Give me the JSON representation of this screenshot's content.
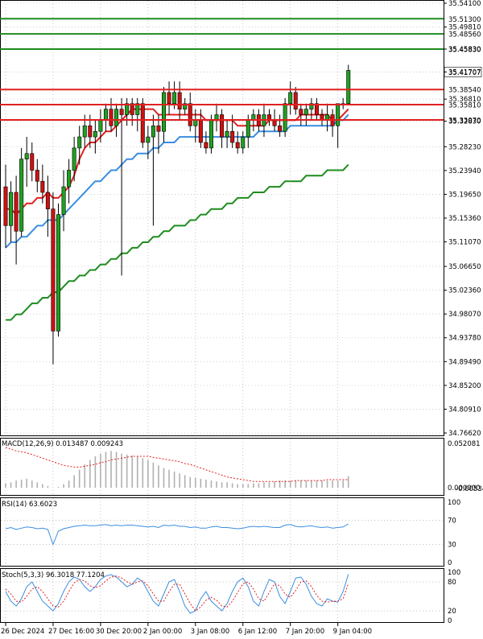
{
  "chart_data": [
    {
      "type": "candlestick",
      "panel": "price",
      "ylim": [
        34.7662,
        35.541
      ],
      "y_ticks": [
        "35.54100",
        "35.49810",
        "35.45830",
        "35.41707",
        "35.36810",
        "35.32830",
        "35.28230",
        "35.23940",
        "35.19650",
        "35.15360",
        "35.11070",
        "35.06650",
        "35.02360",
        "34.98070",
        "34.93780",
        "34.89490",
        "34.85200",
        "34.80910",
        "34.76620"
      ],
      "price_tag": "35.41707",
      "horizontal_levels": [
        {
          "value": 35.513,
          "label": "35.51300",
          "color": "#1e8c1e"
        },
        {
          "value": 35.4856,
          "label": "35.48560",
          "color": "#1e8c1e"
        },
        {
          "value": 35.4583,
          "label": "35.45830",
          "color": "#1e8c1e"
        },
        {
          "value": 35.3854,
          "label": "35.38540",
          "color": "#e02020"
        },
        {
          "value": 35.3581,
          "label": "35.35810",
          "color": "#e02020"
        },
        {
          "value": 35.3307,
          "label": "35.33070",
          "color": "#e02020"
        }
      ],
      "colors": {
        "bull": "#20a020",
        "bear": "#d01010",
        "ma_fast": "#e02020",
        "ma_mid": "#3a8ee0",
        "ma_slow": "#1e8c1e"
      },
      "candles": [
        [
          35.21,
          35.25,
          35.1,
          35.14
        ],
        [
          35.14,
          35.22,
          35.11,
          35.2
        ],
        [
          35.2,
          35.23,
          35.07,
          35.13
        ],
        [
          35.13,
          35.28,
          35.12,
          35.26
        ],
        [
          35.26,
          35.3,
          35.21,
          35.27
        ],
        [
          35.27,
          35.29,
          35.22,
          35.24
        ],
        [
          35.24,
          35.26,
          35.2,
          35.22
        ],
        [
          35.22,
          35.25,
          35.18,
          35.2
        ],
        [
          35.2,
          35.23,
          35.12,
          35.17
        ],
        [
          35.17,
          35.2,
          34.89,
          34.95
        ],
        [
          34.95,
          35.18,
          34.94,
          35.16
        ],
        [
          35.16,
          35.24,
          35.13,
          35.21
        ],
        [
          35.21,
          35.26,
          35.18,
          35.24
        ],
        [
          35.24,
          35.3,
          35.22,
          35.28
        ],
        [
          35.28,
          35.32,
          35.25,
          35.3
        ],
        [
          35.3,
          35.34,
          35.28,
          35.32
        ],
        [
          35.32,
          35.34,
          35.28,
          35.3
        ],
        [
          35.3,
          35.33,
          35.27,
          35.31
        ],
        [
          35.31,
          35.35,
          35.29,
          35.33
        ],
        [
          35.33,
          35.36,
          35.31,
          35.35
        ],
        [
          35.35,
          35.37,
          35.31,
          35.32
        ],
        [
          35.32,
          35.36,
          35.3,
          35.35
        ],
        [
          35.35,
          35.37,
          35.05,
          35.34
        ],
        [
          35.34,
          35.37,
          35.32,
          35.36
        ],
        [
          35.36,
          35.37,
          35.32,
          35.34
        ],
        [
          35.34,
          35.37,
          35.31,
          35.36
        ],
        [
          35.36,
          35.37,
          35.28,
          35.29
        ],
        [
          35.29,
          35.32,
          35.26,
          35.3
        ],
        [
          35.3,
          35.34,
          35.14,
          35.32
        ],
        [
          35.32,
          35.34,
          35.27,
          35.31
        ],
        [
          35.31,
          35.39,
          35.29,
          35.38
        ],
        [
          35.38,
          35.4,
          35.34,
          35.36
        ],
        [
          35.36,
          35.4,
          35.35,
          35.38
        ],
        [
          35.38,
          35.4,
          35.33,
          35.35
        ],
        [
          35.35,
          35.37,
          35.34,
          35.36
        ],
        [
          35.36,
          35.38,
          35.31,
          35.32
        ],
        [
          35.32,
          35.35,
          35.29,
          35.33
        ],
        [
          35.33,
          35.35,
          35.28,
          35.29
        ],
        [
          35.29,
          35.31,
          35.27,
          35.28
        ],
        [
          35.28,
          35.34,
          35.27,
          35.33
        ],
        [
          35.33,
          35.36,
          35.31,
          35.34
        ],
        [
          35.34,
          35.35,
          35.28,
          35.3
        ],
        [
          35.3,
          35.33,
          35.28,
          35.31
        ],
        [
          35.31,
          35.34,
          35.28,
          35.29
        ],
        [
          35.29,
          35.31,
          35.27,
          35.28
        ],
        [
          35.28,
          35.31,
          35.27,
          35.3
        ],
        [
          35.3,
          35.34,
          35.28,
          35.33
        ],
        [
          35.33,
          35.35,
          35.31,
          35.34
        ],
        [
          35.34,
          35.35,
          35.31,
          35.32
        ],
        [
          35.32,
          35.36,
          35.3,
          35.34
        ],
        [
          35.34,
          35.35,
          35.32,
          35.33
        ],
        [
          35.33,
          35.35,
          35.31,
          35.32
        ],
        [
          35.32,
          35.34,
          35.3,
          35.31
        ],
        [
          35.31,
          35.37,
          35.3,
          35.36
        ],
        [
          35.36,
          35.4,
          35.34,
          35.38
        ],
        [
          35.38,
          35.39,
          35.34,
          35.35
        ],
        [
          35.35,
          35.36,
          35.32,
          35.34
        ],
        [
          35.34,
          35.36,
          35.32,
          35.35
        ],
        [
          35.35,
          35.37,
          35.33,
          35.36
        ],
        [
          35.36,
          35.37,
          35.33,
          35.34
        ],
        [
          35.34,
          35.35,
          35.32,
          35.33
        ],
        [
          35.33,
          35.36,
          35.31,
          35.34
        ],
        [
          35.34,
          35.35,
          35.3,
          35.32
        ],
        [
          35.32,
          35.36,
          35.28,
          35.36
        ],
        [
          35.36,
          35.37,
          35.35,
          35.36
        ],
        [
          35.36,
          35.43,
          35.36,
          35.42
        ]
      ],
      "ma_fast": [
        35.17,
        35.17,
        35.16,
        35.17,
        35.18,
        35.18,
        35.19,
        35.19,
        35.2,
        35.19,
        35.19,
        35.2,
        35.21,
        35.23,
        35.26,
        35.28,
        35.29,
        35.29,
        35.3,
        35.31,
        35.31,
        35.32,
        35.33,
        35.34,
        35.35,
        35.35,
        35.35,
        35.35,
        35.35,
        35.34,
        35.34,
        35.34,
        35.34,
        35.34,
        35.34,
        35.34,
        35.34,
        35.34,
        35.33,
        35.33,
        35.33,
        35.33,
        35.33,
        35.33,
        35.32,
        35.32,
        35.32,
        35.32,
        35.32,
        35.32,
        35.33,
        35.33,
        35.33,
        35.33,
        35.33,
        35.33,
        35.34,
        35.34,
        35.34,
        35.34,
        35.34,
        35.34,
        35.33,
        35.33,
        35.34,
        35.35
      ],
      "ma_mid": [
        35.1,
        35.11,
        35.11,
        35.12,
        35.12,
        35.13,
        35.14,
        35.14,
        35.15,
        35.15,
        35.15,
        35.16,
        35.17,
        35.18,
        35.19,
        35.2,
        35.21,
        35.22,
        35.22,
        35.23,
        35.24,
        35.24,
        35.25,
        35.26,
        35.26,
        35.27,
        35.27,
        35.27,
        35.28,
        35.28,
        35.29,
        35.29,
        35.29,
        35.3,
        35.3,
        35.3,
        35.3,
        35.3,
        35.3,
        35.3,
        35.3,
        35.3,
        35.3,
        35.3,
        35.3,
        35.3,
        35.3,
        35.3,
        35.31,
        35.31,
        35.31,
        35.31,
        35.31,
        35.31,
        35.32,
        35.32,
        35.32,
        35.32,
        35.32,
        35.32,
        35.32,
        35.32,
        35.32,
        35.33,
        35.33,
        35.34
      ],
      "ma_slow": [
        34.97,
        34.97,
        34.98,
        34.98,
        34.99,
        35.0,
        35.0,
        35.01,
        35.01,
        35.02,
        35.02,
        35.03,
        35.04,
        35.04,
        35.05,
        35.05,
        35.06,
        35.06,
        35.07,
        35.07,
        35.08,
        35.08,
        35.09,
        35.09,
        35.1,
        35.1,
        35.11,
        35.11,
        35.12,
        35.12,
        35.13,
        35.13,
        35.14,
        35.14,
        35.14,
        35.15,
        35.15,
        35.16,
        35.16,
        35.17,
        35.17,
        35.17,
        35.18,
        35.18,
        35.19,
        35.19,
        35.19,
        35.2,
        35.2,
        35.2,
        35.21,
        35.21,
        35.21,
        35.22,
        35.22,
        35.22,
        35.22,
        35.23,
        35.23,
        35.23,
        35.23,
        35.24,
        35.24,
        35.24,
        35.24,
        35.25
      ]
    },
    {
      "type": "macd",
      "label": "MACD(12,26,9) 0.013487 0.009243",
      "y_ticks": [
        "0.052081",
        "0.000000"
      ],
      "y_tick_bottom": "-0.005345",
      "ylim": [
        -0.005345,
        0.052081
      ],
      "histogram": [
        0.005,
        0.006,
        0.008,
        0.009,
        0.01,
        0.008,
        0.006,
        0.004,
        0.002,
        0.0,
        0.001,
        0.004,
        0.008,
        0.014,
        0.02,
        0.026,
        0.031,
        0.035,
        0.038,
        0.04,
        0.041,
        0.04,
        0.038,
        0.037,
        0.036,
        0.035,
        0.033,
        0.031,
        0.028,
        0.025,
        0.022,
        0.02,
        0.018,
        0.016,
        0.014,
        0.012,
        0.011,
        0.01,
        0.009,
        0.008,
        0.007,
        0.006,
        0.006,
        0.005,
        0.004,
        0.004,
        0.004,
        0.005,
        0.005,
        0.006,
        0.006,
        0.007,
        0.008,
        0.008,
        0.008,
        0.008,
        0.008,
        0.008,
        0.008,
        0.008,
        0.008,
        0.008,
        0.008,
        0.008,
        0.008,
        0.013
      ],
      "signal": [
        0.045,
        0.043,
        0.041,
        0.04,
        0.039,
        0.037,
        0.035,
        0.033,
        0.031,
        0.029,
        0.027,
        0.025,
        0.024,
        0.023,
        0.023,
        0.024,
        0.025,
        0.026,
        0.028,
        0.029,
        0.031,
        0.032,
        0.033,
        0.034,
        0.035,
        0.035,
        0.035,
        0.035,
        0.034,
        0.033,
        0.032,
        0.031,
        0.03,
        0.029,
        0.027,
        0.026,
        0.024,
        0.022,
        0.02,
        0.018,
        0.016,
        0.014,
        0.012,
        0.011,
        0.01,
        0.009,
        0.008,
        0.007,
        0.007,
        0.007,
        0.007,
        0.007,
        0.007,
        0.007,
        0.007,
        0.008,
        0.008,
        0.008,
        0.008,
        0.008,
        0.008,
        0.009,
        0.009,
        0.009,
        0.009,
        0.009
      ]
    },
    {
      "type": "line",
      "label": "RSI(14) 63.6023",
      "y_ticks": [
        "100",
        "70",
        "30",
        "0"
      ],
      "ylim": [
        0,
        100
      ],
      "levels": [
        70,
        30
      ],
      "values": [
        56,
        58,
        55,
        57,
        59,
        58,
        56,
        57,
        55,
        30,
        52,
        56,
        58,
        60,
        61,
        62,
        61,
        61,
        62,
        63,
        61,
        62,
        61,
        62,
        62,
        61,
        60,
        59,
        60,
        58,
        62,
        61,
        62,
        60,
        60,
        58,
        59,
        57,
        57,
        59,
        60,
        58,
        58,
        57,
        56,
        57,
        59,
        60,
        59,
        60,
        59,
        58,
        58,
        62,
        63,
        60,
        59,
        60,
        61,
        59,
        58,
        59,
        57,
        58,
        59,
        64
      ]
    },
    {
      "type": "line",
      "label": "Stoch(5,3,3) 96.3018 77.1204",
      "y_ticks": [
        "100",
        "80",
        "20",
        "0"
      ],
      "ylim": [
        0,
        100
      ],
      "levels": [
        80,
        20
      ],
      "series": [
        {
          "values": [
            60,
            40,
            30,
            45,
            70,
            80,
            60,
            40,
            30,
            20,
            35,
            60,
            80,
            90,
            85,
            70,
            60,
            70,
            85,
            92,
            95,
            90,
            80,
            70,
            75,
            88,
            80,
            60,
            40,
            30,
            55,
            80,
            85,
            60,
            30,
            15,
            20,
            45,
            60,
            40,
            30,
            20,
            35,
            60,
            80,
            88,
            70,
            40,
            30,
            60,
            85,
            80,
            50,
            35,
            60,
            88,
            90,
            75,
            50,
            35,
            30,
            45,
            40,
            38,
            60,
            96
          ]
        },
        {
          "values": [
            65,
            55,
            40,
            38,
            50,
            65,
            70,
            60,
            45,
            30,
            28,
            40,
            60,
            78,
            85,
            82,
            72,
            68,
            72,
            82,
            90,
            92,
            88,
            80,
            75,
            80,
            82,
            72,
            55,
            40,
            40,
            60,
            75,
            75,
            55,
            35,
            20,
            28,
            42,
            48,
            42,
            30,
            28,
            40,
            58,
            76,
            80,
            65,
            45,
            40,
            58,
            76,
            72,
            55,
            48,
            62,
            80,
            82,
            70,
            52,
            40,
            38,
            40,
            40,
            45,
            77
          ]
        }
      ]
    }
  ],
  "x_labels": [
    {
      "label": "26 Dec 2024",
      "index": 0
    },
    {
      "label": "27 Dec 16:00",
      "index": 9
    },
    {
      "label": "30 Dec 20:00",
      "index": 18
    },
    {
      "label": "2 Jan 00:00",
      "index": 27
    },
    {
      "label": "3 Jan 08:00",
      "index": 36
    },
    {
      "label": "6 Jan 12:00",
      "index": 45
    },
    {
      "label": "7 Jan 20:00",
      "index": 54
    },
    {
      "label": "9 Jan 04:00",
      "index": 63
    }
  ]
}
